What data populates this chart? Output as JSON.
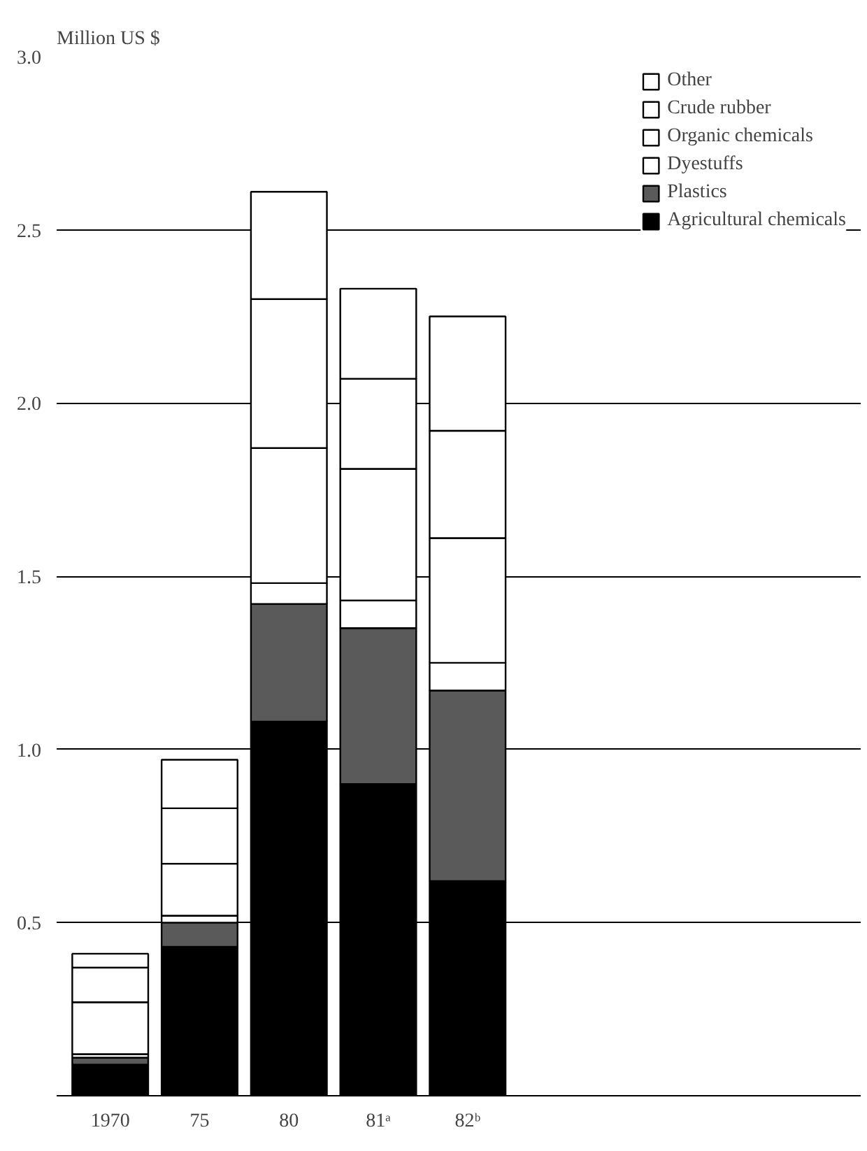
{
  "chart_data": {
    "type": "bar",
    "stacked": true,
    "ylabel": "Million US $",
    "categories": [
      "1970",
      "75",
      "80",
      "81ᵃ",
      "82ᵇ"
    ],
    "series": [
      {
        "name": "Agricultural chemicals",
        "color": "#000000",
        "values": [
          0.09,
          0.43,
          1.08,
          0.9,
          0.62
        ]
      },
      {
        "name": "Plastics",
        "color": "#5a5a5a",
        "values": [
          0.02,
          0.07,
          0.34,
          0.45,
          0.55
        ]
      },
      {
        "name": "Dyestuffs",
        "color": "#ffffff",
        "values": [
          0.01,
          0.02,
          0.06,
          0.08,
          0.08
        ]
      },
      {
        "name": "Organic chemicals",
        "color": "#ffffff",
        "values": [
          0.15,
          0.15,
          0.39,
          0.38,
          0.36
        ]
      },
      {
        "name": "Crude rubber",
        "color": "#ffffff",
        "values": [
          0.1,
          0.16,
          0.43,
          0.26,
          0.31
        ]
      },
      {
        "name": "Other",
        "color": "#ffffff",
        "values": [
          0.04,
          0.14,
          0.31,
          0.26,
          0.33
        ]
      }
    ],
    "ylim": [
      0,
      3.0
    ],
    "yticks": [
      {
        "value": 0,
        "label": null
      },
      {
        "value": 0.5,
        "label": "0.5"
      },
      {
        "value": 1.0,
        "label": "1.0"
      },
      {
        "value": 1.5,
        "label": "1.5"
      },
      {
        "value": 2.0,
        "label": "2.0"
      },
      {
        "value": 2.5,
        "label": "2.5"
      },
      {
        "value": 3.0,
        "label": "3.0"
      }
    ],
    "grid": "y",
    "legend": "top right"
  }
}
